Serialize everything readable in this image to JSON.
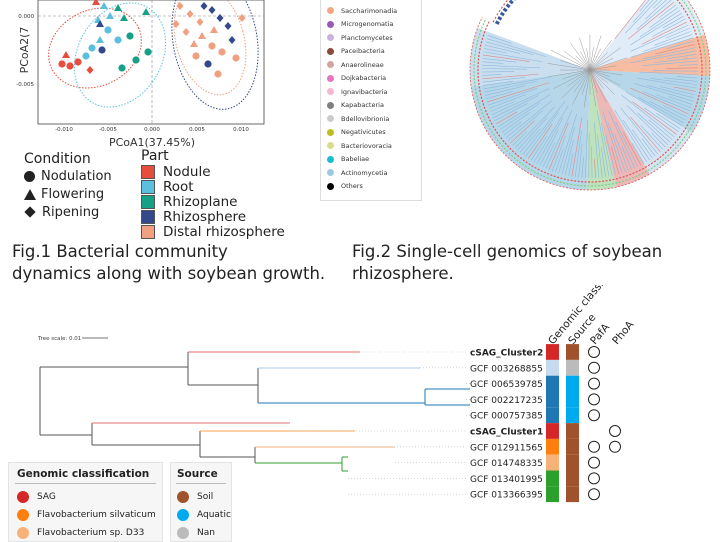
{
  "fig1": {
    "ylabel": "PCoA2(7",
    "xlabel": "PCoA1(37.45%)",
    "yticks": [
      "0.000",
      "-0.005"
    ],
    "xticks": [
      "-0.010",
      "-0.005",
      "0.000",
      "0.005",
      "0.010"
    ],
    "condition_title": "Condition",
    "conditions": [
      "Nodulation",
      "Flowering",
      "Ripening"
    ],
    "part_title": "Part",
    "parts": [
      {
        "label": "Nodule",
        "color": "#e74c3c"
      },
      {
        "label": "Root",
        "color": "#5bc0de"
      },
      {
        "label": "Rhizoplane",
        "color": "#16a085"
      },
      {
        "label": "Rhizosphere",
        "color": "#34498a"
      },
      {
        "label": "Distal rhizosphere",
        "color": "#f0a080"
      }
    ],
    "caption_line1": "Fig.1 Bacterial community",
    "caption_line2": "dynamics along with soybean growth."
  },
  "fig2": {
    "legend": [
      {
        "label": "Saccharimonadia",
        "color": "#f4a582"
      },
      {
        "label": "Microgenomatia",
        "color": "#9b59b6"
      },
      {
        "label": "Planctomycetes",
        "color": "#c9b3dd"
      },
      {
        "label": "Paceibacteria",
        "color": "#8c4a3a"
      },
      {
        "label": "Anaerolineae",
        "color": "#d4a5a0"
      },
      {
        "label": "Dojkabacteria",
        "color": "#e377c2"
      },
      {
        "label": "Ignavibacteria",
        "color": "#f7b6d2"
      },
      {
        "label": "Kapabacteria",
        "color": "#7f7f7f"
      },
      {
        "label": "Bdellovibrionia",
        "color": "#cccccc"
      },
      {
        "label": "Negativicutes",
        "color": "#bcbd22"
      },
      {
        "label": "Bacteriovoracia",
        "color": "#dbdb8d"
      },
      {
        "label": "Babeliae",
        "color": "#17becf"
      },
      {
        "label": "Actinomycetia",
        "color": "#9ecae1"
      },
      {
        "label": "Others",
        "color": "#000000"
      }
    ],
    "caption_line1": "Fig.2 Single-cell genomics of soybean",
    "caption_line2": "rhizosphere."
  },
  "fig3": {
    "tree_scale": "Tree scale: 0.01",
    "col_headers": [
      "Genomic classification",
      "Source",
      "PafA",
      "PhoA"
    ],
    "leaves": [
      {
        "label": "cSAG_Cluster2",
        "bold": true,
        "gc": "#d62728",
        "src": "#a0522d",
        "pafa": true,
        "phoa": false
      },
      {
        "label": "GCF 003268855",
        "bold": false,
        "gc": "#c6dbef",
        "src": "#bbbbbb",
        "pafa": true,
        "phoa": false
      },
      {
        "label": "GCF 006539785",
        "bold": false,
        "gc": "#1f77b4",
        "src": "#00aaee",
        "pafa": true,
        "phoa": false
      },
      {
        "label": "GCF 002217235",
        "bold": false,
        "gc": "#1f77b4",
        "src": "#00aaee",
        "pafa": true,
        "phoa": false
      },
      {
        "label": "GCF 000757385",
        "bold": false,
        "gc": "#1f77b4",
        "src": "#00aaee",
        "pafa": true,
        "phoa": false
      },
      {
        "label": "cSAG_Cluster1",
        "bold": true,
        "gc": "#d62728",
        "src": "#a0522d",
        "pafa": false,
        "phoa": true
      },
      {
        "label": "GCF 012911565",
        "bold": false,
        "gc": "#ff7f0e",
        "src": "#a0522d",
        "pafa": true,
        "phoa": true
      },
      {
        "label": "GCF 014748335",
        "bold": false,
        "gc": "#f7b27a",
        "src": "#a0522d",
        "pafa": true,
        "phoa": false
      },
      {
        "label": "GCF 013401995",
        "bold": false,
        "gc": "#2ca02c",
        "src": "#a0522d",
        "pafa": true,
        "phoa": false
      },
      {
        "label": "GCF 013366395",
        "bold": false,
        "gc": "#2ca02c",
        "src": "#a0522d",
        "pafa": true,
        "phoa": false
      }
    ],
    "gc_legend_title": "Genomic classification",
    "gc_legend": [
      {
        "label": "SAG",
        "color": "#d62728"
      },
      {
        "label": "Flavobacterium silvaticum",
        "color": "#ff7f0e"
      },
      {
        "label": "Flavobacterium sp. D33",
        "color": "#f7b27a"
      }
    ],
    "src_legend_title": "Source",
    "src_legend": [
      {
        "label": "Soil",
        "color": "#a0522d"
      },
      {
        "label": "Aquatic",
        "color": "#00aaee"
      },
      {
        "label": "Nan",
        "color": "#bbbbbb"
      }
    ]
  }
}
